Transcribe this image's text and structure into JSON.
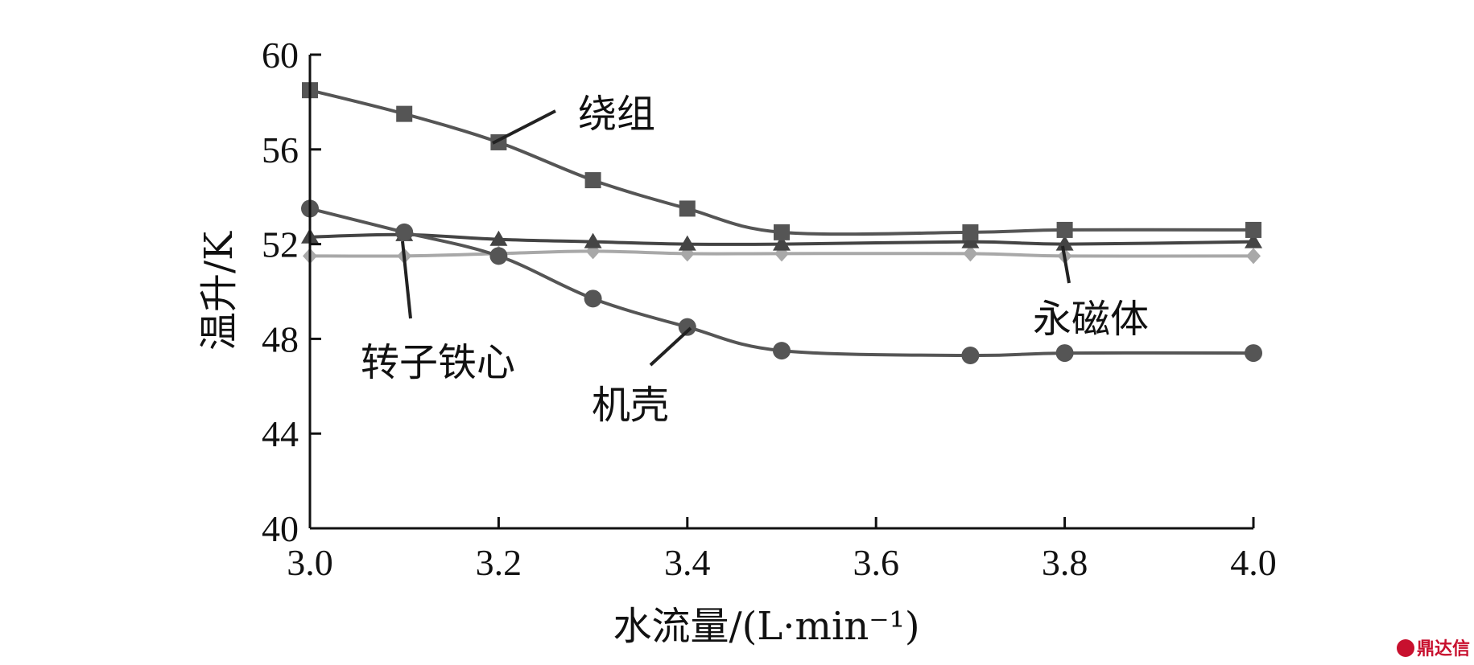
{
  "chart_data": {
    "type": "line",
    "title": "",
    "xlabel": "水流量/(L·min⁻¹)",
    "ylabel": "温升/K",
    "xlim": [
      3.0,
      4.0
    ],
    "ylim": [
      40,
      60
    ],
    "xticks": [
      "3.0",
      "3.2",
      "3.4",
      "3.6",
      "3.8",
      "4.0"
    ],
    "yticks": [
      "40",
      "44",
      "48",
      "52",
      "56",
      "60"
    ],
    "grid": false,
    "x": [
      3.0,
      3.1,
      3.2,
      3.3,
      3.4,
      3.5,
      3.7,
      3.8,
      4.0
    ],
    "series": [
      {
        "name": "绕组",
        "marker": "square",
        "color": "#555555",
        "values": [
          58.5,
          57.5,
          56.3,
          54.7,
          53.5,
          52.5,
          52.5,
          52.6,
          52.6
        ]
      },
      {
        "name": "转子铁心",
        "marker": "triangle",
        "color": "#444444",
        "values": [
          52.3,
          52.4,
          52.2,
          52.1,
          52.0,
          52.0,
          52.1,
          52.0,
          52.1
        ]
      },
      {
        "name": "永磁体",
        "marker": "diamond",
        "color": "#a8a8a8",
        "values": [
          51.5,
          51.5,
          51.6,
          51.7,
          51.6,
          51.6,
          51.6,
          51.5,
          51.5
        ]
      },
      {
        "name": "机壳",
        "marker": "circle",
        "color": "#555555",
        "values": [
          53.5,
          52.5,
          51.5,
          49.7,
          48.5,
          47.5,
          47.3,
          47.4,
          47.4
        ]
      }
    ],
    "annotations": [
      {
        "text": "绕组",
        "series": "绕组"
      },
      {
        "text": "转子铁心",
        "series": "转子铁心"
      },
      {
        "text": "机壳",
        "series": "机壳"
      },
      {
        "text": "永磁体",
        "series": "永磁体"
      }
    ]
  },
  "watermark": "鼎达信"
}
